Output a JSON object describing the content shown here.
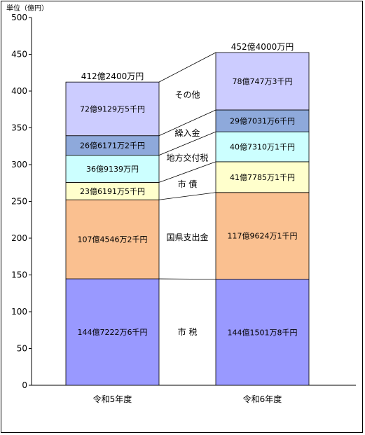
{
  "chart_data": {
    "type": "bar",
    "stacked": true,
    "unit_label": "単位（億円）",
    "ylim": [
      0,
      500
    ],
    "yticks": [
      0,
      50,
      100,
      150,
      200,
      250,
      300,
      350,
      400,
      450,
      500
    ],
    "grid": false,
    "categories": [
      "令和5年度",
      "令和6年度"
    ],
    "totals": [
      "412億2400万円",
      "452億4000万円"
    ],
    "total_values": [
      412.24,
      452.4
    ],
    "series": [
      {
        "name": "市  税",
        "color": "#9999ff",
        "values": [
          144.72226,
          144.15018
        ],
        "labels": [
          "144億7222万6千円",
          "144億1501万8千円"
        ]
      },
      {
        "name": "国県支出金",
        "color": "#fac090",
        "values": [
          107.45462,
          117.96241
        ],
        "labels": [
          "107億4546万2千円",
          "117億9624万1千円"
        ]
      },
      {
        "name": "市  債",
        "color": "#ffffcc",
        "values": [
          23.61915,
          41.77851
        ],
        "labels": [
          "23億6191万5千円",
          "41億7785万1千円"
        ]
      },
      {
        "name": "地方交付税",
        "color": "#ccffff",
        "values": [
          36.9139,
          40.73101
        ],
        "labels": [
          "36億9139万円",
          "40億7310万1千円"
        ]
      },
      {
        "name": "繰入金",
        "color": "#8ea9db",
        "values": [
          26.61712,
          29.70316
        ],
        "labels": [
          "26億6171万2千円",
          "29億7031万6千円"
        ]
      },
      {
        "name": "その他",
        "color": "#ccccff",
        "values": [
          72.91295,
          78.07473
        ],
        "labels": [
          "72億9129万5千円",
          "78億747万3千円"
        ]
      }
    ]
  }
}
